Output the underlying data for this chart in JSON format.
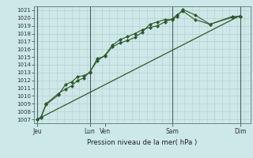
{
  "bg_color": "#cce8e8",
  "plot_bg_color": "#cce8e8",
  "line_color": "#2d5a2d",
  "marker_color": "#2d5a2d",
  "ylabel_text": "Pression niveau de la mer( hPa )",
  "ylim": [
    1006.5,
    1021.5
  ],
  "yticks": [
    1007,
    1008,
    1009,
    1010,
    1011,
    1012,
    1013,
    1014,
    1015,
    1016,
    1017,
    1018,
    1019,
    1020,
    1021
  ],
  "xtick_labels": [
    "Jeu",
    "Lun",
    "Ven",
    "Sam",
    "Dim"
  ],
  "xtick_positions": [
    0.0,
    3.5,
    4.5,
    9.0,
    13.5
  ],
  "vline_positions": [
    0.0,
    3.5,
    9.0,
    13.5
  ],
  "xlim": [
    -0.2,
    14.2
  ],
  "hgrid_color": "#bbcccc",
  "vgrid_color": "#bbcccc",
  "series1_x": [
    0.0,
    0.25,
    0.6,
    1.4,
    1.9,
    2.3,
    2.7,
    3.1,
    3.5,
    4.0,
    4.5,
    5.0,
    5.5,
    6.0,
    6.5,
    7.0,
    7.5,
    8.0,
    8.5,
    9.0,
    9.3,
    9.7,
    10.5,
    11.5,
    13.0,
    13.5
  ],
  "series1_y": [
    1007.0,
    1007.2,
    1008.9,
    1010.1,
    1011.5,
    1011.8,
    1012.5,
    1012.6,
    1013.0,
    1014.8,
    1015.1,
    1016.3,
    1016.8,
    1017.1,
    1017.5,
    1018.2,
    1019.2,
    1019.5,
    1019.8,
    1019.8,
    1020.2,
    1021.1,
    1020.4,
    1019.2,
    1020.2,
    1020.2
  ],
  "series2_x": [
    0.0,
    0.25,
    0.6,
    1.4,
    1.9,
    2.3,
    2.7,
    3.1,
    3.5,
    4.0,
    4.5,
    5.0,
    5.5,
    6.0,
    6.5,
    7.0,
    7.5,
    8.0,
    8.5,
    9.0,
    9.3,
    9.7,
    10.5,
    11.5,
    13.0,
    13.5
  ],
  "series2_y": [
    1007.0,
    1007.3,
    1009.0,
    1010.3,
    1010.9,
    1011.3,
    1012.0,
    1012.3,
    1013.1,
    1014.5,
    1015.2,
    1016.5,
    1017.2,
    1017.6,
    1018.0,
    1018.5,
    1018.8,
    1019.0,
    1019.5,
    1019.9,
    1020.4,
    1020.9,
    1019.8,
    1019.2,
    1020.1,
    1020.2
  ],
  "trend_x": [
    0.0,
    13.5
  ],
  "trend_y": [
    1007.0,
    1020.3
  ],
  "figsize": [
    3.2,
    2.0
  ],
  "dpi": 100
}
